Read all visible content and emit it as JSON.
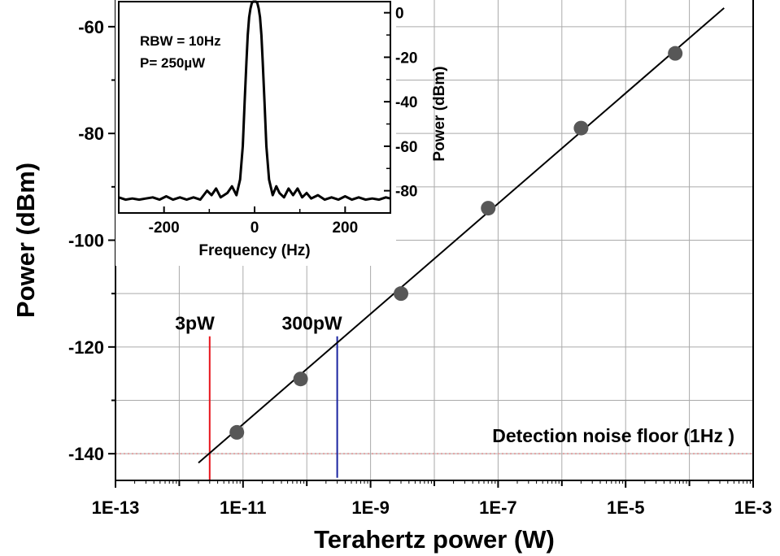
{
  "chart_data": [
    {
      "type": "scatter",
      "title": "",
      "xlabel": "Terahertz power (W)",
      "ylabel": "Power (dBm)",
      "x_scale": "log",
      "xlim": [
        1e-13,
        0.001
      ],
      "ylim": [
        -145,
        -55
      ],
      "grid": true,
      "x_ticks": [
        "1E-13",
        "1E-11",
        "1E-9",
        "1E-7",
        "1E-5",
        "1E-3"
      ],
      "y_ticks": [
        "-60",
        "-80",
        "-100",
        "-120",
        "-140"
      ],
      "points": [
        {
          "x": 8e-12,
          "y": -136
        },
        {
          "x": 8e-11,
          "y": -126
        },
        {
          "x": 3e-09,
          "y": -110
        },
        {
          "x": 7e-08,
          "y": -94
        },
        {
          "x": 2e-06,
          "y": -79
        },
        {
          "x": 6e-05,
          "y": -65
        }
      ],
      "fit_line": {
        "x": [
          2e-12,
          0.00035
        ],
        "y": [
          -141.7,
          -56.5
        ]
      },
      "noise_floor": {
        "y": -140,
        "label": "Detection noise floor (1Hz )",
        "color": "#e3a3a3"
      },
      "markers": [
        {
          "label": "3pW",
          "x": 3e-12,
          "y_top": -118,
          "y_bottom": -145,
          "color": "#e8141c"
        },
        {
          "label": "300pW",
          "x": 3e-10,
          "y_top": -118,
          "y_bottom": -144.5,
          "color": "#1a24a0"
        }
      ],
      "colors": {
        "points": "#575757",
        "line": "#000000",
        "grid": "#aaaaaa"
      }
    },
    {
      "type": "line",
      "title": "",
      "xlabel": "Frequency  (Hz)",
      "ylabel": "Power (dBm)",
      "xlim": [
        -300,
        300
      ],
      "ylim": [
        -90,
        5
      ],
      "x_ticks": [
        "-200",
        "0",
        "200"
      ],
      "y_ticks": [
        "0",
        "-20",
        "-40",
        "-60",
        "-80"
      ],
      "annotations": [
        "RBW = 10Hz",
        "P= 250µW"
      ],
      "series": [
        {
          "x": [
            -300,
            -285,
            -270,
            -255,
            -240,
            -225,
            -210,
            -195,
            -180,
            -165,
            -150,
            -135,
            -120,
            -105,
            -95,
            -85,
            -75,
            -60,
            -50,
            -40,
            -32,
            -26,
            -22,
            -18,
            -15,
            -12,
            -9,
            -6,
            -3,
            0,
            3,
            6,
            9,
            12,
            15,
            18,
            22,
            26,
            32,
            40,
            48,
            55,
            65,
            75,
            85,
            95,
            105,
            115,
            125,
            140,
            155,
            170,
            185,
            200,
            215,
            230,
            245,
            260,
            275,
            290,
            300
          ],
          "y": [
            -83,
            -84,
            -83.5,
            -84,
            -83.5,
            -83,
            -84,
            -82.5,
            -84,
            -83,
            -84,
            -83,
            -84,
            -80,
            -82,
            -79,
            -83,
            -81,
            -78,
            -82,
            -75,
            -60,
            -40,
            -22,
            -10,
            -2,
            2,
            4.5,
            5,
            5,
            5,
            4.5,
            2,
            -2,
            -10,
            -22,
            -40,
            -60,
            -75,
            -82,
            -78,
            -81,
            -83,
            -79,
            -82,
            -79,
            -83,
            -81,
            -83.5,
            -82,
            -84,
            -83,
            -84,
            -82.5,
            -84,
            -83,
            -84,
            -83.5,
            -84,
            -83,
            -83.5
          ]
        }
      ]
    }
  ]
}
